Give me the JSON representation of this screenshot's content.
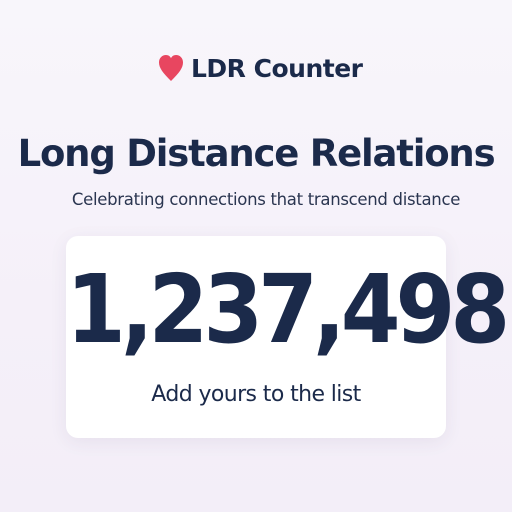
{
  "brand": {
    "name": "LDR Counter",
    "icon": "heart-icon",
    "icon_color": "#e84660"
  },
  "hero": {
    "title": "Long Distance Relations",
    "subtitle": "Celebrating connections that transcend distance"
  },
  "counter": {
    "value": "1,237,498",
    "cta_label": "Add yours to the list"
  },
  "colors": {
    "text": "#1b2a4a",
    "card": "#ffffff",
    "background": "#f6f2f9"
  }
}
